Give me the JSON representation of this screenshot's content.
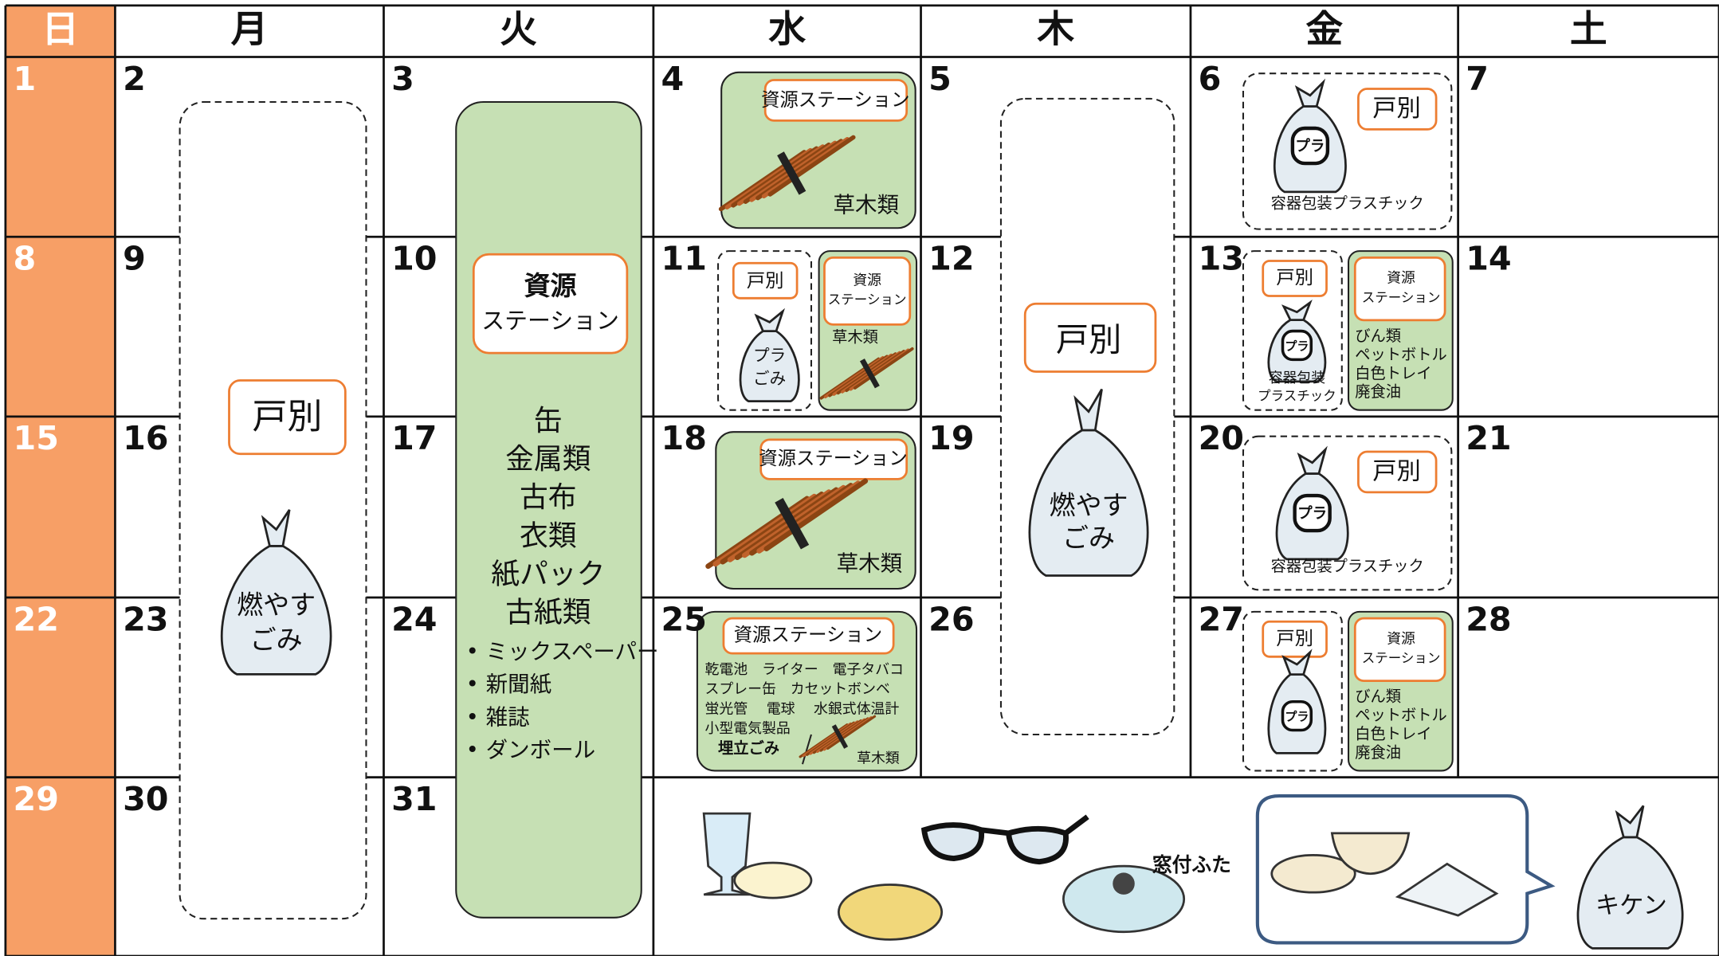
{
  "weekdays": [
    "日",
    "月",
    "火",
    "水",
    "木",
    "金",
    "土"
  ],
  "weeks": [
    [
      1,
      2,
      3,
      4,
      5,
      6,
      7
    ],
    [
      8,
      9,
      10,
      11,
      12,
      13,
      14
    ],
    [
      15,
      16,
      17,
      18,
      19,
      20,
      21
    ],
    [
      22,
      23,
      24,
      25,
      26,
      27,
      28
    ],
    [
      29,
      30,
      31
    ]
  ],
  "monday": {
    "label": "戸別",
    "bag": [
      "燃やす",
      "ごみ"
    ]
  },
  "tuesday": {
    "title": [
      "資源",
      "ステーション"
    ],
    "items": [
      "缶",
      "金属類",
      "古布",
      "衣類",
      "紙パック",
      "古紙類"
    ],
    "sub_items": [
      "• ミックスペーパー",
      "• 新聞紙",
      "• 雑誌",
      "• ダンボール"
    ]
  },
  "thursday": {
    "label": "戸別",
    "bag": [
      "燃やす",
      "ごみ"
    ]
  },
  "wednesday": {
    "day4": {
      "title": "資源ステーション",
      "item": "草木類"
    },
    "day11": {
      "household": {
        "label": "戸別",
        "bag": [
          "プラ",
          "ごみ"
        ]
      },
      "station": {
        "title": [
          "資源",
          "ステーション"
        ],
        "item": "草木類"
      }
    },
    "day18": {
      "title": "資源ステーション",
      "item": "草木類"
    },
    "day25": {
      "title": "資源ステーション",
      "lines": [
        "乾電池　ライター　電子タバコ",
        "スプレー缶　カセットボンベ",
        "蛍光管　 電球　 水銀式体温計",
        "小型電気製品"
      ],
      "landfill": "埋立ごみ",
      "item": "草木類"
    }
  },
  "friday": {
    "day6": {
      "label": "戸別",
      "mark": "プラ",
      "caption": "容器包装プラスチック"
    },
    "day13": {
      "household": {
        "label": "戸別",
        "mark": "プラ",
        "caption": [
          "容器包装",
          "プラスチック"
        ]
      },
      "station": {
        "title": [
          "資源",
          "ステーション"
        ],
        "items": [
          "びん類",
          "ペットボトル",
          "白色トレイ",
          "廃食油"
        ]
      }
    },
    "day20": {
      "label": "戸別",
      "mark": "プラ",
      "caption": "容器包装プラスチック"
    },
    "day27": {
      "household": {
        "label": "戸別",
        "mark": "プラ"
      },
      "station": {
        "title": [
          "資源",
          "ステーション"
        ],
        "items": [
          "びん類",
          "ペットボトル",
          "白色トレイ",
          "廃食油"
        ]
      }
    }
  },
  "landfill_examples": {
    "lid_label": "窓付ふた",
    "hazard_label": "キケン"
  }
}
